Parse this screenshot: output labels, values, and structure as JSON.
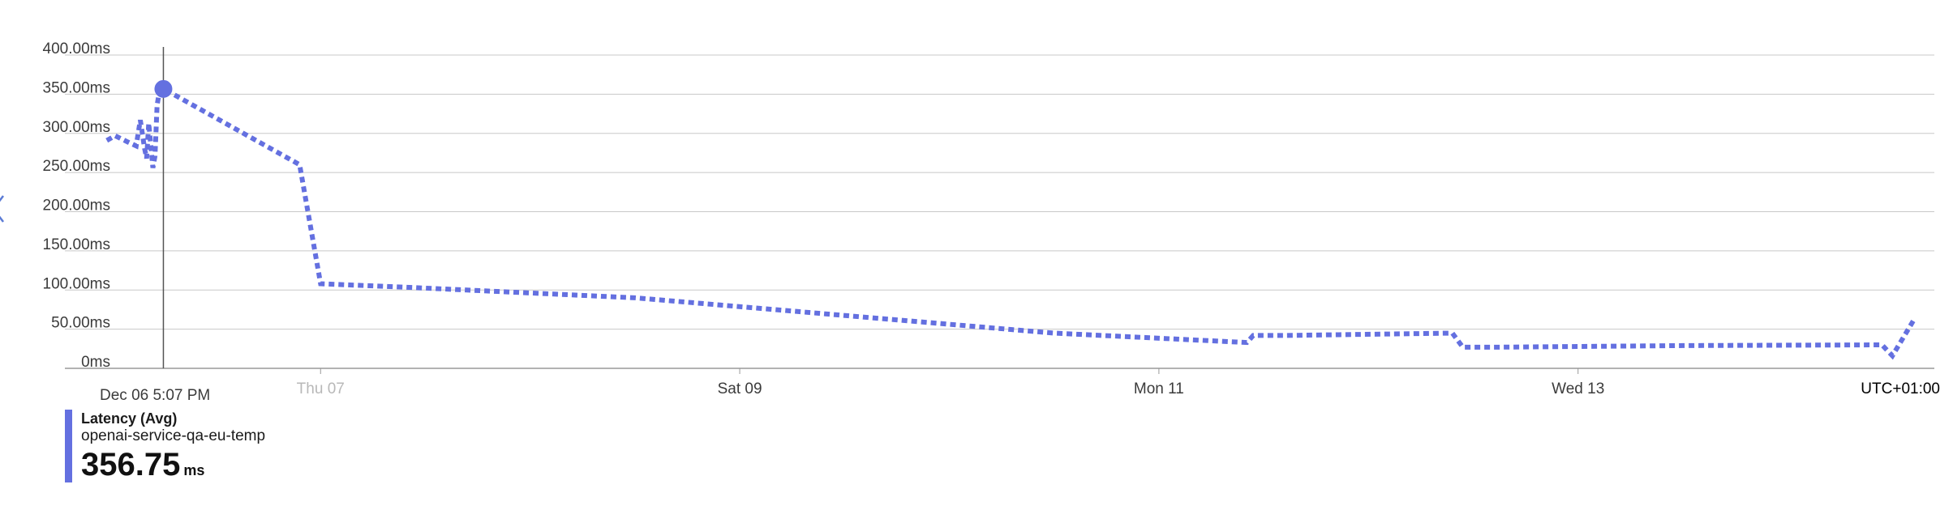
{
  "accent_color": "#6470e0",
  "timezone_label": "UTC+01:00",
  "cursor": {
    "label": "Dec 06 5:07 PM",
    "value_ms": 356.75
  },
  "legend": {
    "metric": "Latency (Avg)",
    "resource": "openai-service-qa-eu-temp",
    "value": "356.75",
    "unit": "ms"
  },
  "chart_data": {
    "type": "line",
    "title": "",
    "xlabel": "",
    "ylabel": "",
    "ylim": [
      0,
      400
    ],
    "yticks": [
      "0ms",
      "50.00ms",
      "100.00ms",
      "150.00ms",
      "200.00ms",
      "250.00ms",
      "300.00ms",
      "350.00ms",
      "400.00ms"
    ],
    "xticks": [
      {
        "label": "Thu 07",
        "day": 7,
        "faded": true
      },
      {
        "label": "Sat 09",
        "day": 9,
        "faded": false
      },
      {
        "label": "Mon 11",
        "day": 11,
        "faded": false
      },
      {
        "label": "Wed 13",
        "day": 13,
        "faded": false
      }
    ],
    "xlim_days": [
      5.78,
      14.7
    ],
    "grid": true,
    "series": [
      {
        "name": "openai-service-qa-eu-temp",
        "color": "#6470e0",
        "x_days": [
          5.98,
          6.02,
          6.08,
          6.12,
          6.14,
          6.16,
          6.17,
          6.18,
          6.2,
          6.21,
          6.22,
          6.23,
          6.25,
          6.9,
          7.0,
          7.45,
          8.5,
          10.5,
          11.42,
          11.45,
          11.6,
          12.4,
          12.45,
          12.6,
          13.5,
          14.45,
          14.5,
          14.6
        ],
        "y_ms": [
          291,
          297,
          289,
          284,
          317,
          281,
          268,
          313,
          256,
          271,
          336,
          352,
          357,
          260,
          108,
          103,
          90,
          45,
          33,
          42,
          42,
          45,
          27,
          27,
          29,
          30,
          16,
          61
        ]
      }
    ]
  }
}
